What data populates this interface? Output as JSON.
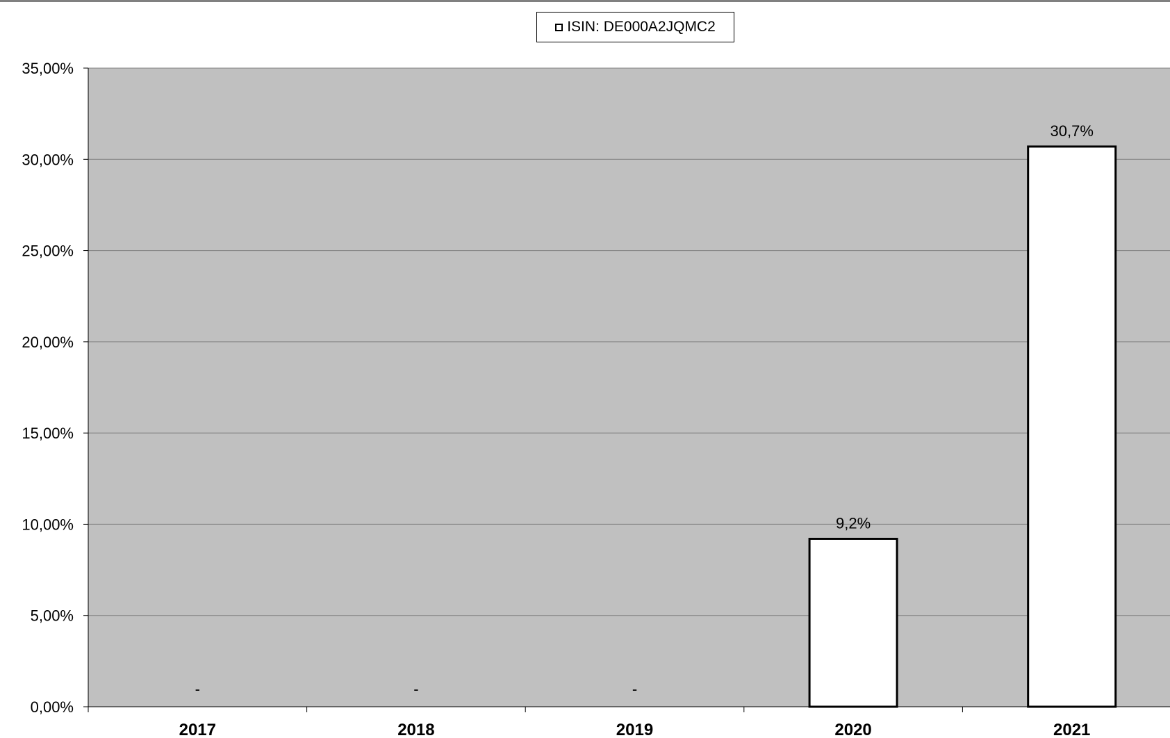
{
  "chart_data": {
    "type": "bar",
    "categories": [
      "2017",
      "2018",
      "2019",
      "2020",
      "2021"
    ],
    "series": [
      {
        "name": "ISIN: DE000A2JQMC2",
        "values": [
          null,
          null,
          null,
          9.2,
          30.7
        ],
        "data_labels": [
          "-",
          "-",
          "-",
          "9,2%",
          "30,7%"
        ]
      }
    ],
    "title": "",
    "xlabel": "",
    "ylabel": "",
    "ylim": [
      0,
      35
    ],
    "yticks": [
      0,
      5,
      10,
      15,
      20,
      25,
      30,
      35
    ],
    "ytick_labels": [
      "0,00%",
      "5,00%",
      "10,00%",
      "15,00%",
      "20,00%",
      "25,00%",
      "30,00%",
      "35,00%"
    ],
    "grid": true,
    "legend_position": "top-center",
    "colors": {
      "plot_background": "#c0c0c0",
      "bar_fill": "#ffffff",
      "bar_stroke": "#000000",
      "gridline": "#808080"
    }
  }
}
